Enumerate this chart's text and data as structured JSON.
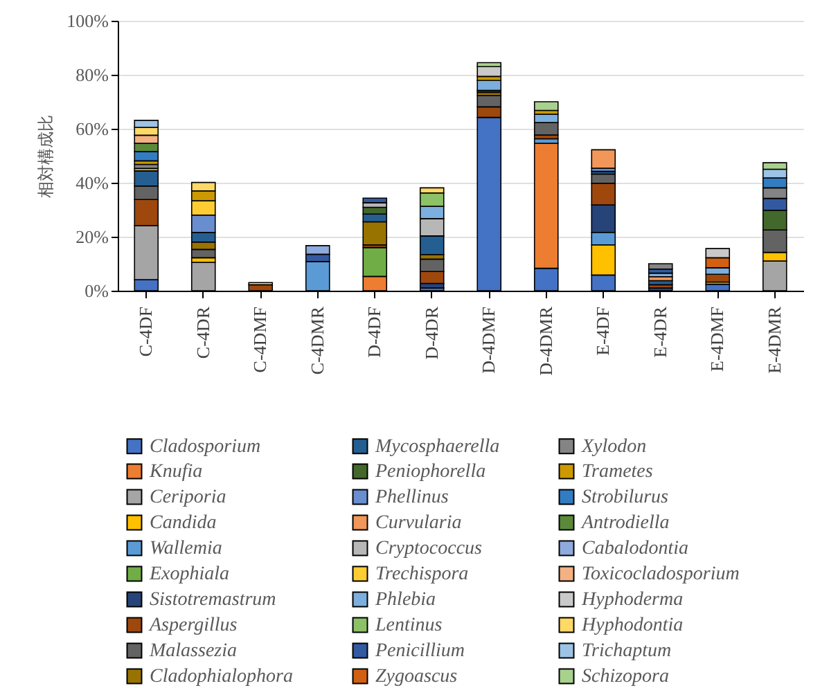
{
  "chart_data": {
    "type": "bar",
    "stacked": true,
    "ylabel": "相対構成比",
    "categories": [
      "C-4DF",
      "C-4DR",
      "C-4DMF",
      "C-4DMR",
      "D-4DF",
      "D-4DR",
      "D-4DMF",
      "D-4DMR",
      "E-4DF",
      "E-4DR",
      "E-4DMF",
      "E-4DMR"
    ],
    "ylim": [
      0,
      100
    ],
    "yticks": [
      {
        "value": 0,
        "label": "0%"
      },
      {
        "value": 20,
        "label": "20%"
      },
      {
        "value": 40,
        "label": "40%"
      },
      {
        "value": 60,
        "label": "60%"
      },
      {
        "value": 80,
        "label": "80%"
      },
      {
        "value": 100,
        "label": "100%"
      }
    ],
    "grid": "y",
    "legend": "bottom",
    "series": [
      {
        "name": "Cladosporium",
        "color": "#4472c4",
        "values": [
          4.1,
          null,
          null,
          null,
          null,
          1.0,
          64.2,
          8.3,
          5.8,
          null,
          2.4,
          null
        ]
      },
      {
        "name": "Knufia",
        "color": "#ed7d31",
        "values": [
          null,
          null,
          null,
          null,
          5.3,
          null,
          null,
          46.3,
          null,
          null,
          null,
          null
        ]
      },
      {
        "name": "Ceriporia",
        "color": "#a5a5a5",
        "values": [
          20.0,
          10.5,
          null,
          null,
          null,
          null,
          null,
          null,
          null,
          null,
          null,
          11.0
        ]
      },
      {
        "name": "Candida",
        "color": "#ffc000",
        "values": [
          null,
          1.7,
          null,
          null,
          null,
          null,
          null,
          null,
          11.2,
          null,
          0.8,
          3.2
        ]
      },
      {
        "name": "Wallemia",
        "color": "#5b9bd5",
        "values": [
          null,
          null,
          null,
          10.8,
          null,
          null,
          null,
          1.7,
          4.6,
          null,
          null,
          null
        ]
      },
      {
        "name": "Exophiala",
        "color": "#70ad47",
        "values": [
          null,
          null,
          null,
          null,
          10.7,
          null,
          null,
          null,
          null,
          null,
          null,
          null
        ]
      },
      {
        "name": "Sistotremastrum",
        "color": "#264478",
        "values": [
          null,
          null,
          null,
          null,
          null,
          1.7,
          null,
          null,
          10.2,
          1.0,
          null,
          null
        ]
      },
      {
        "name": "Aspergillus",
        "color": "#9e480e",
        "values": [
          9.7,
          null,
          2.2,
          null,
          1.0,
          4.4,
          3.9,
          1.4,
          8.0,
          1.2,
          2.9,
          null
        ]
      },
      {
        "name": "Malassezia",
        "color": "#636363",
        "values": [
          5.0,
          3.1,
          null,
          null,
          null,
          4.6,
          4.2,
          4.6,
          3.4,
          null,
          null,
          8.3
        ]
      },
      {
        "name": "Cladophialophora",
        "color": "#997300",
        "values": [
          null,
          2.7,
          null,
          null,
          8.5,
          1.7,
          1.2,
          null,
          null,
          null,
          null,
          null
        ]
      },
      {
        "name": "Mycosphaerella",
        "color": "#255e91",
        "values": [
          5.6,
          3.6,
          null,
          null,
          2.9,
          6.9,
          0.7,
          null,
          1.0,
          1.5,
          null,
          null
        ]
      },
      {
        "name": "Peniophorella",
        "color": "#43682b",
        "values": [
          null,
          null,
          null,
          null,
          2.5,
          null,
          null,
          null,
          null,
          null,
          null,
          7.3
        ]
      },
      {
        "name": "Phellinus",
        "color": "#698ed0",
        "values": [
          null,
          6.4,
          null,
          null,
          null,
          null,
          null,
          null,
          1.2,
          null,
          null,
          null
        ]
      },
      {
        "name": "Curvularia",
        "color": "#f1975a",
        "values": [
          null,
          null,
          null,
          null,
          null,
          null,
          null,
          null,
          6.8,
          1.5,
          null,
          null
        ]
      },
      {
        "name": "Cryptococcus",
        "color": "#b7b7b7",
        "values": [
          null,
          null,
          null,
          null,
          1.7,
          6.4,
          null,
          null,
          null,
          null,
          null,
          null
        ]
      },
      {
        "name": "Trechispora",
        "color": "#ffcd33",
        "values": [
          0.9,
          5.3,
          null,
          null,
          null,
          null,
          null,
          null,
          null,
          null,
          null,
          null
        ]
      },
      {
        "name": "Phlebia",
        "color": "#7cafdd",
        "values": [
          null,
          null,
          null,
          null,
          null,
          4.6,
          3.7,
          3.1,
          null,
          1.3,
          2.4,
          null
        ]
      },
      {
        "name": "Lentinus",
        "color": "#8cc168",
        "values": [
          null,
          null,
          null,
          null,
          null,
          4.9,
          null,
          null,
          null,
          null,
          null,
          null
        ]
      },
      {
        "name": "Penicillium",
        "color": "#335aa1",
        "values": [
          null,
          null,
          null,
          2.7,
          1.7,
          null,
          null,
          null,
          null,
          1.5,
          null,
          4.4
        ]
      },
      {
        "name": "Zygoascus",
        "color": "#d26012",
        "values": [
          null,
          null,
          null,
          null,
          null,
          null,
          null,
          null,
          null,
          null,
          3.7,
          null
        ]
      },
      {
        "name": "Xylodon",
        "color": "#848484",
        "values": [
          1.5,
          null,
          null,
          null,
          null,
          null,
          null,
          null,
          null,
          2.0,
          null,
          3.9
        ]
      },
      {
        "name": "Trametes",
        "color": "#cc9a00",
        "values": [
          1.3,
          3.7,
          null,
          null,
          null,
          null,
          1.5,
          1.4,
          null,
          null,
          null,
          null
        ]
      },
      {
        "name": "Strobilurus",
        "color": "#327dc2",
        "values": [
          3.4,
          null,
          null,
          null,
          null,
          null,
          null,
          null,
          null,
          null,
          null,
          3.7
        ]
      },
      {
        "name": "Antrodiella",
        "color": "#5a8a39",
        "values": [
          3.1,
          null,
          null,
          null,
          null,
          null,
          null,
          null,
          null,
          null,
          null,
          null
        ]
      },
      {
        "name": "Cabalodontia",
        "color": "#8faadc",
        "values": [
          null,
          null,
          null,
          3.2,
          null,
          null,
          null,
          null,
          null,
          null,
          null,
          null
        ]
      },
      {
        "name": "Toxicocladosporium",
        "color": "#f4b183",
        "values": [
          3.0,
          null,
          null,
          null,
          null,
          null,
          null,
          null,
          null,
          null,
          null,
          null
        ]
      },
      {
        "name": "Hyphoderma",
        "color": "#c9c9c9",
        "values": [
          null,
          null,
          null,
          null,
          null,
          null,
          3.6,
          null,
          null,
          null,
          3.4,
          null
        ]
      },
      {
        "name": "Hyphodontia",
        "color": "#ffd966",
        "values": [
          2.9,
          3.1,
          0.8,
          null,
          null,
          1.9,
          null,
          null,
          null,
          null,
          null,
          null
        ]
      },
      {
        "name": "Trichaptum",
        "color": "#9dc3e6",
        "values": [
          2.6,
          null,
          null,
          null,
          null,
          null,
          null,
          null,
          null,
          null,
          null,
          3.2
        ]
      },
      {
        "name": "Schizopora",
        "color": "#a9d18e",
        "values": [
          null,
          null,
          null,
          null,
          null,
          null,
          1.5,
          3.2,
          null,
          null,
          null,
          2.4
        ]
      }
    ]
  }
}
